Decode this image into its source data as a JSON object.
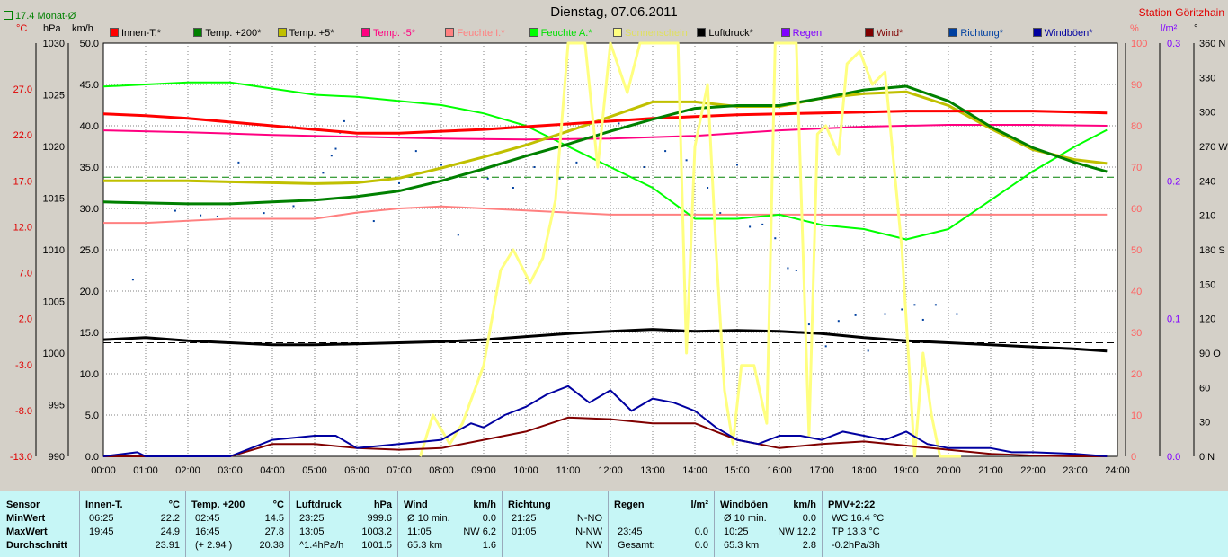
{
  "header": {
    "title": "Dienstag, 07.06.2011",
    "station": "Station Göritzhain",
    "monat_label": "17.4 Monat-Ø",
    "units": {
      "celsius": "°C",
      "hpa": "hPa",
      "kmh": "km/h",
      "percent": "%",
      "rain": "l/m²",
      "deg": "°"
    }
  },
  "legend": [
    {
      "label": "Innen-T.*",
      "color": "#ff0000"
    },
    {
      "label": "Temp. +200*",
      "color": "#008000"
    },
    {
      "label": "Temp. +5*",
      "color": "#c0c000"
    },
    {
      "label": "Temp. -5*",
      "color": "#ff0080"
    },
    {
      "label": "Feuchte I.*",
      "color": "#ff8080"
    },
    {
      "label": "Feuchte A.*",
      "color": "#00ff00"
    },
    {
      "label": "Sonnenschein",
      "color": "#ffff80"
    },
    {
      "label": "Luftdruck*",
      "color": "#000000"
    },
    {
      "label": "Regen",
      "color": "#8000ff"
    },
    {
      "label": "Wind*",
      "color": "#800000"
    },
    {
      "label": "Richtung*",
      "color": "#0040a0"
    },
    {
      "label": "Windböen*",
      "color": "#0000a0"
    }
  ],
  "chart_data": {
    "type": "line",
    "x_ticks": [
      "00:00",
      "01:00",
      "02:00",
      "03:00",
      "04:00",
      "05:00",
      "06:00",
      "07:00",
      "08:00",
      "09:00",
      "10:00",
      "11:00",
      "12:00",
      "13:00",
      "14:00",
      "15:00",
      "16:00",
      "17:00",
      "18:00",
      "19:00",
      "20:00",
      "21:00",
      "22:00",
      "23:00",
      "24:00"
    ],
    "axes": {
      "temp": {
        "ticks": [
          "27.0",
          "22.0",
          "17.0",
          "12.0",
          "7.0",
          "2.0",
          "-3.0",
          "-8.0",
          "-13.0"
        ],
        "range": [
          -13,
          32
        ]
      },
      "pressure": {
        "ticks": [
          "1030",
          "1025",
          "1020",
          "1015",
          "1010",
          "1005",
          "1000",
          "995",
          "990"
        ],
        "range": [
          990,
          1030
        ]
      },
      "wind": {
        "ticks": [
          "50.0",
          "45.0",
          "40.0",
          "35.0",
          "30.0",
          "25.0",
          "20.0",
          "15.0",
          "10.0",
          "5.0",
          "0.0"
        ],
        "range": [
          0,
          50
        ]
      },
      "humidity": {
        "ticks": [
          "100",
          "90",
          "80",
          "70",
          "60",
          "50",
          "40",
          "30",
          "20",
          "10",
          "0"
        ],
        "range": [
          0,
          100
        ]
      },
      "rain": {
        "ticks": [
          "0.3",
          "0.2",
          "0.1",
          "0.0"
        ],
        "range": [
          0,
          0.3
        ]
      },
      "direction": {
        "ticks": [
          "360 N",
          "330",
          "300",
          "270 W",
          "240",
          "210",
          "180 S",
          "150",
          "120",
          "90 O",
          "60",
          "30",
          "0 N"
        ],
        "range": [
          0,
          360
        ]
      }
    },
    "series": [
      {
        "name": "Innen-T.*",
        "axis": "temp",
        "color": "#ff0000",
        "width": 3,
        "x": [
          0,
          1,
          2,
          3,
          4,
          5,
          6,
          7,
          8,
          9,
          10,
          11,
          12,
          13,
          14,
          15,
          16,
          17,
          18,
          19,
          20,
          21,
          22,
          23,
          23.75
        ],
        "y": [
          24.3,
          24.1,
          23.8,
          23.4,
          23.0,
          22.6,
          22.2,
          22.2,
          22.4,
          22.6,
          22.9,
          23.2,
          23.5,
          23.8,
          24.0,
          24.2,
          24.3,
          24.4,
          24.5,
          24.6,
          24.6,
          24.6,
          24.6,
          24.5,
          24.4
        ]
      },
      {
        "name": "Temp. +200*",
        "axis": "temp",
        "color": "#008000",
        "width": 3,
        "x": [
          0,
          1,
          2,
          3,
          4,
          5,
          6,
          7,
          8,
          9,
          10,
          11,
          12,
          13,
          14,
          15,
          16,
          17,
          18,
          19,
          20,
          21,
          22,
          23,
          23.75
        ],
        "y": [
          14.7,
          14.6,
          14.5,
          14.5,
          14.7,
          14.9,
          15.3,
          15.9,
          17.0,
          18.3,
          19.7,
          21.0,
          22.4,
          23.7,
          24.9,
          25.2,
          25.2,
          26.0,
          26.9,
          27.3,
          25.7,
          22.9,
          20.6,
          19.0,
          18.0
        ]
      },
      {
        "name": "Temp. +5*",
        "axis": "temp",
        "color": "#c0c000",
        "width": 3,
        "x": [
          0,
          1,
          2,
          3,
          4,
          5,
          6,
          7,
          8,
          9,
          10,
          11,
          12,
          13,
          14,
          15,
          16,
          17,
          18,
          19,
          20,
          21,
          22,
          23,
          23.75
        ],
        "y": [
          17.0,
          17.0,
          17.0,
          16.9,
          16.8,
          16.7,
          16.8,
          17.3,
          18.4,
          19.6,
          20.9,
          22.4,
          24.0,
          25.6,
          25.6,
          25.1,
          25.1,
          26.0,
          26.5,
          26.7,
          25.2,
          22.7,
          20.4,
          19.3,
          18.9
        ]
      },
      {
        "name": "Temp. -5*",
        "axis": "temp",
        "color": "#ff0080",
        "width": 2,
        "x": [
          0,
          2,
          4,
          6,
          8,
          10,
          12,
          14,
          16,
          18,
          20,
          22,
          23.75
        ],
        "y": [
          22.5,
          22.3,
          22.0,
          21.8,
          21.6,
          21.5,
          21.6,
          21.9,
          22.5,
          22.9,
          23.1,
          23.1,
          23.0
        ]
      },
      {
        "name": "Feuchte I.*",
        "axis": "humidity",
        "color": "#ff8080",
        "width": 2,
        "x": [
          0,
          1,
          2,
          3,
          4,
          5,
          6,
          7,
          8,
          9,
          10,
          11,
          12,
          13,
          14,
          15,
          16,
          17,
          18,
          19,
          20,
          21,
          22,
          23,
          23.75
        ],
        "y": [
          56.5,
          56.5,
          57.0,
          57.5,
          57.5,
          57.5,
          59.0,
          60.0,
          60.5,
          60.0,
          59.5,
          59.0,
          58.5,
          58.5,
          58.5,
          58.5,
          58.5,
          58.5,
          58.5,
          58.5,
          58.5,
          58.5,
          58.5,
          58.5,
          58.5
        ]
      },
      {
        "name": "Feuchte A.*",
        "axis": "humidity",
        "color": "#00ff00",
        "width": 2,
        "x": [
          0,
          1,
          2,
          3,
          4,
          5,
          6,
          7,
          8,
          9,
          10,
          11,
          12,
          13,
          14,
          15,
          16,
          17,
          18,
          19,
          20,
          21,
          22,
          23,
          23.75
        ],
        "y": [
          89.5,
          90,
          90.5,
          90.5,
          89,
          87.5,
          87,
          86,
          85,
          83,
          80,
          75,
          70,
          65,
          57.5,
          57.5,
          58.5,
          56,
          55,
          52.5,
          55,
          62,
          69,
          75,
          79
        ]
      },
      {
        "name": "Sonnenschein",
        "axis": "humidity",
        "color": "#ffff80",
        "width": 3,
        "x": [
          7.5,
          7.8,
          8.2,
          8.5,
          9.0,
          9.4,
          9.7,
          10.1,
          10.4,
          10.7,
          11.0,
          11.4,
          11.7,
          12.0,
          12.4,
          12.7,
          13.0,
          13.4,
          13.6,
          13.8,
          14.0,
          14.3,
          14.5,
          14.7,
          14.9,
          15.1,
          15.4,
          15.7,
          15.9,
          16.1,
          16.4,
          16.7,
          16.9,
          17.1,
          17.4,
          17.6,
          17.9,
          18.2,
          18.5,
          18.9,
          19.2,
          19.4,
          19.6,
          19.8,
          20.0,
          20.3
        ],
        "y": [
          0,
          10,
          3,
          8,
          22,
          45,
          50,
          42,
          48,
          62,
          100,
          100,
          70,
          100,
          88,
          100,
          100,
          100,
          100,
          25,
          75,
          90,
          50,
          16,
          3,
          22,
          22,
          8,
          100,
          100,
          100,
          5,
          78,
          80,
          73,
          95,
          98,
          90,
          93,
          50,
          0,
          25,
          10,
          0,
          0,
          0
        ]
      },
      {
        "name": "Luftdruck*",
        "axis": "pressure",
        "color": "#000000",
        "width": 3,
        "x": [
          0,
          1,
          2,
          3,
          4,
          5,
          6,
          7,
          8,
          9,
          10,
          11,
          12,
          13,
          14,
          15,
          16,
          17,
          18,
          19,
          20,
          21,
          22,
          23,
          23.75
        ],
        "y": [
          1001.3,
          1001.5,
          1001.2,
          1001.0,
          1000.8,
          1000.8,
          1000.9,
          1001.0,
          1001.1,
          1001.3,
          1001.6,
          1001.9,
          1002.1,
          1002.3,
          1002.1,
          1002.2,
          1002.1,
          1001.9,
          1001.5,
          1001.2,
          1001.0,
          1000.8,
          1000.6,
          1000.4,
          1000.2
        ]
      },
      {
        "name": "Wind*",
        "axis": "wind",
        "color": "#800000",
        "width": 2,
        "x": [
          0,
          1,
          2,
          3,
          4,
          5,
          6,
          7,
          8,
          9,
          10,
          11,
          12,
          13,
          14,
          15,
          16,
          17,
          18,
          19,
          20,
          21,
          22,
          23,
          23.75
        ],
        "y": [
          0,
          0,
          0,
          0,
          1.5,
          1.5,
          1.0,
          0.8,
          1.0,
          2.0,
          3.0,
          4.7,
          4.5,
          4.0,
          4.0,
          2.0,
          1.0,
          1.5,
          1.8,
          1.3,
          0.8,
          0.3,
          0.1,
          0,
          0
        ]
      },
      {
        "name": "Windböen*",
        "axis": "wind",
        "color": "#0000a0",
        "width": 2,
        "x": [
          0,
          0.8,
          1,
          2,
          3,
          4,
          5,
          5.5,
          6,
          7,
          8,
          8.7,
          9,
          9.5,
          10,
          10.5,
          11,
          11.5,
          12,
          12.5,
          13,
          13.5,
          14,
          14.5,
          15,
          15.5,
          16,
          16.5,
          17,
          17.5,
          18,
          18.5,
          19,
          19.5,
          20,
          20.5,
          21,
          21.5,
          22,
          23,
          23.75
        ],
        "y": [
          0,
          0.5,
          0,
          0,
          0,
          2.0,
          2.5,
          2.5,
          1.0,
          1.5,
          2.0,
          4.0,
          3.5,
          5.0,
          6.0,
          7.5,
          8.5,
          6.5,
          8.0,
          5.5,
          7.0,
          6.5,
          5.5,
          3.5,
          2.0,
          1.5,
          2.5,
          2.5,
          2.0,
          3.0,
          2.5,
          2.0,
          3.0,
          1.5,
          1.0,
          1.0,
          1.0,
          0.5,
          0.5,
          0.3,
          0
        ]
      }
    ],
    "direction_points": {
      "axis": "direction",
      "color": "#0040a0",
      "x": [
        0.7,
        1.7,
        2.3,
        2.7,
        3.2,
        3.8,
        4.5,
        5.2,
        5.4,
        5.5,
        5.6,
        5.7,
        6.4,
        7.0,
        7.4,
        8.0,
        8.4,
        8.8,
        9.1,
        9.7,
        10.2,
        10.8,
        11.2,
        11.6,
        12.2,
        12.8,
        13.3,
        13.8,
        14.3,
        14.6,
        15.0,
        15.3,
        15.6,
        15.9,
        16.2,
        16.4,
        16.7,
        17.1,
        17.4,
        17.8,
        18.1,
        18.5,
        18.9,
        19.2,
        19.4,
        19.7,
        20.2
      ],
      "y": [
        154,
        214,
        210,
        209,
        256,
        212,
        218,
        247,
        262,
        268,
        282,
        292,
        205,
        238,
        266,
        254,
        193,
        248,
        242,
        234,
        252,
        242,
        256,
        279,
        290,
        252,
        266,
        258,
        234,
        212,
        254,
        200,
        202,
        190,
        164,
        162,
        115,
        96,
        118,
        123,
        92,
        124,
        128,
        132,
        119,
        132,
        124
      ]
    },
    "reference_lines": [
      {
        "axis": "temp",
        "value": 17.4,
        "color": "#008000",
        "dash": true
      },
      {
        "axis": "pressure",
        "value": 1001.0,
        "color": "#000000",
        "dash": true
      }
    ]
  },
  "table": {
    "row_labels": [
      "Sensor",
      "MinWert",
      "MaxWert",
      "Durchschnitt"
    ],
    "columns": [
      {
        "title": "Innen-T.",
        "unit": "°C",
        "rows": [
          [
            "06:25",
            "22.2"
          ],
          [
            "19:45",
            "24.9"
          ],
          [
            "",
            "23.91"
          ]
        ]
      },
      {
        "title": "Temp. +200",
        "unit": "°C",
        "rows": [
          [
            "02:45",
            "14.5"
          ],
          [
            "16:45",
            "27.8"
          ],
          [
            "(+ 2.94 )",
            "20.38"
          ]
        ]
      },
      {
        "title": "Luftdruck",
        "unit": "hPa",
        "rows": [
          [
            "23:25",
            "999.6"
          ],
          [
            "13:05",
            "1003.2"
          ],
          [
            "^1.4hPa/h",
            "1001.5"
          ]
        ]
      },
      {
        "title": "Wind",
        "unit": "km/h",
        "rows": [
          [
            "Ø 10 min.",
            "0.0"
          ],
          [
            "11:05",
            "NW 6.2"
          ],
          [
            "65.3 km",
            "1.6"
          ]
        ]
      },
      {
        "title": "Richtung",
        "unit": "",
        "rows": [
          [
            "21:25",
            "N-NO"
          ],
          [
            "01:05",
            "N-NW"
          ],
          [
            "",
            "NW"
          ]
        ]
      },
      {
        "title": "Regen",
        "unit": "l/m²",
        "rows": [
          [
            "",
            ""
          ],
          [
            "23:45",
            "0.0"
          ],
          [
            "Gesamt:",
            "0.0"
          ]
        ]
      },
      {
        "title": "Windböen",
        "unit": "km/h",
        "rows": [
          [
            "Ø 10 min.",
            "0.0"
          ],
          [
            "10:25",
            "NW 12.2"
          ],
          [
            "65.3 km",
            "2.8"
          ]
        ]
      },
      {
        "title": "PMV+2:22",
        "unit": "",
        "rows": [
          [
            "WC 16.4 °C",
            ""
          ],
          [
            "TP 13.3 °C",
            ""
          ],
          [
            "-0.2hPa/3h",
            ""
          ]
        ]
      }
    ]
  }
}
